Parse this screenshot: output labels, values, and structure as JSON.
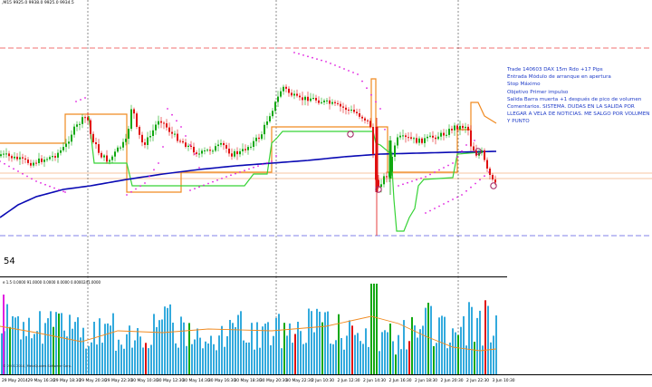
{
  "symbol_info": ",M15  9925.0 9938.0 9925.0 9934.5",
  "annotation_lines": [
    "Trade 140603 DAX 15m Rdo +17 Pips",
    "Entrada  Módulo de arranque en apertura",
    "Stop Máximo",
    "Objetivo Primer impulso",
    "Salida Barra muerta +1 después de pico de volumen",
    "Comentarios. SISTEMA. DUDAS EN LA SALIDA POR LLEGAR A VELA DE NOTICIAS. ME SALGO POR VOLUMEN Y PUNTO"
  ],
  "indicator_value": "54",
  "volume_header": "e 1.5 0.0000 91.0000 0.0000 0.0000 0.0000241.0000",
  "copyright": "© 2001-2014, MetaQuotes Software Corp.",
  "x_axis_labels": [
    "29 May 2014",
    "29 May 16:30",
    "29 May 18:30",
    "29 May 20:30",
    "29 May 22:30",
    "30 May 10:30",
    "30 May 12:30",
    "30 May 14:30",
    "30 May 16:30",
    "30 May 18:30",
    "30 May 20:30",
    "30 May 22:30",
    "2 Jun 10:30",
    "2 Jun 12:30",
    "2 Jun 14:30",
    "2 Jun 16:30",
    "2 Jun 18:30",
    "2 Jun 20:30",
    "2 Jun 22:30",
    "3 Jun 10:30"
  ],
  "colors": {
    "bull": "#10a810",
    "bear": "#e01010",
    "ma_blue": "#0a0ab4",
    "trail_green": "#36d336",
    "orange": "#f08a20",
    "psar": "#e020e0",
    "volume_bar": "#33aadd",
    "dash_red": "#f07070",
    "dash_blue": "#8080e8",
    "annotation": "#1f3cc8"
  }
}
